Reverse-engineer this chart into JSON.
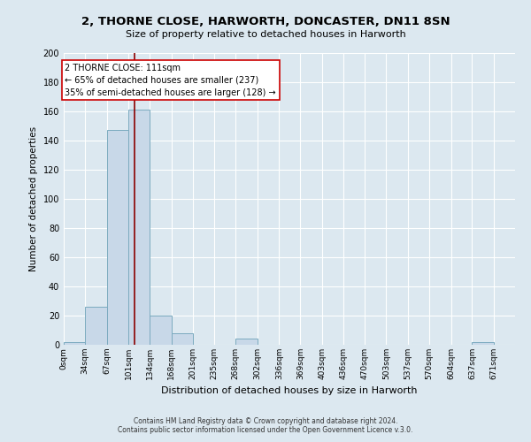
{
  "title": "2, THORNE CLOSE, HARWORTH, DONCASTER, DN11 8SN",
  "subtitle": "Size of property relative to detached houses in Harworth",
  "xlabel": "Distribution of detached houses by size in Harworth",
  "ylabel": "Number of detached properties",
  "bin_edges": [
    0,
    33,
    67,
    101,
    134,
    168,
    201,
    235,
    268,
    302,
    336,
    369,
    403,
    436,
    470,
    503,
    537,
    570,
    604,
    637,
    671,
    704
  ],
  "bin_labels": [
    "0sqm",
    "34sqm",
    "67sqm",
    "101sqm",
    "134sqm",
    "168sqm",
    "201sqm",
    "235sqm",
    "268sqm",
    "302sqm",
    "336sqm",
    "369sqm",
    "403sqm",
    "436sqm",
    "470sqm",
    "503sqm",
    "537sqm",
    "570sqm",
    "604sqm",
    "637sqm",
    "671sqm"
  ],
  "bar_heights": [
    2,
    26,
    147,
    161,
    20,
    8,
    0,
    0,
    4,
    0,
    0,
    0,
    0,
    0,
    0,
    0,
    0,
    0,
    0,
    2,
    0
  ],
  "bar_color": "#c8d8e8",
  "bar_edge_color": "#7baabf",
  "property_value": 111,
  "vline_color": "#8b0000",
  "ylim": [
    0,
    200
  ],
  "yticks": [
    0,
    20,
    40,
    60,
    80,
    100,
    120,
    140,
    160,
    180,
    200
  ],
  "annotation_text": "2 THORNE CLOSE: 111sqm\n← 65% of detached houses are smaller (237)\n35% of semi-detached houses are larger (128) →",
  "annotation_box_color": "#ffffff",
  "annotation_box_edge": "#cc0000",
  "footer_line1": "Contains HM Land Registry data © Crown copyright and database right 2024.",
  "footer_line2": "Contains public sector information licensed under the Open Government Licence v.3.0.",
  "background_color": "#dce8f0",
  "plot_bg_color": "#dce8f0",
  "title_fontsize": 9.5,
  "subtitle_fontsize": 8,
  "xlabel_fontsize": 8,
  "ylabel_fontsize": 7.5,
  "tick_fontsize": 6.5,
  "ytick_fontsize": 7,
  "annot_fontsize": 7,
  "footer_fontsize": 5.5
}
